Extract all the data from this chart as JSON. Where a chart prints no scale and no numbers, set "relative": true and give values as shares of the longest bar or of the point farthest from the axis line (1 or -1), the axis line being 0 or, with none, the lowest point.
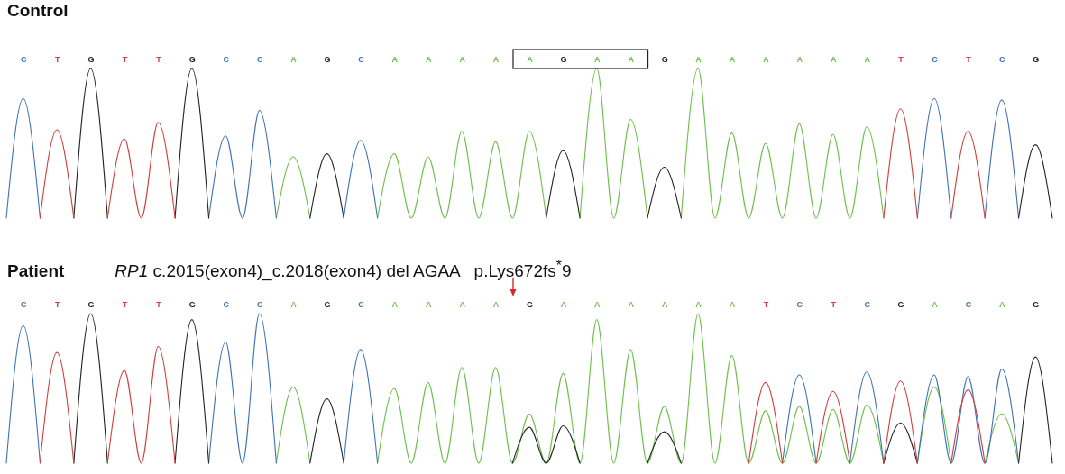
{
  "chart_data": [
    {
      "type": "line",
      "title": "Control",
      "relative": true,
      "tick_labels": "x",
      "legend": false,
      "grid": false,
      "categories": [
        null,
        "C",
        null,
        "T",
        null,
        "G",
        null,
        "T",
        null,
        "T",
        null,
        "G",
        null,
        "C",
        null,
        "C",
        null,
        "A",
        null,
        "G",
        null,
        "C",
        null,
        "A",
        null,
        "A",
        null,
        "A",
        null,
        "A",
        null,
        "A",
        null,
        "G",
        null,
        "A",
        null,
        "A",
        null,
        "G",
        null,
        "A",
        null,
        "A",
        null,
        "A",
        null,
        "A",
        null,
        "A",
        null,
        "A",
        null,
        "T",
        null,
        "C",
        null,
        "T",
        null,
        "C",
        null,
        "G",
        null
      ],
      "series": [
        {
          "color": "#6cc04a",
          "values": [
            null,
            null,
            null,
            null,
            null,
            null,
            null,
            null,
            null,
            null,
            null,
            null,
            null,
            null,
            null,
            null,
            0,
            0.41,
            0,
            null,
            null,
            null,
            0,
            0.43,
            0,
            0.41,
            0,
            0.58,
            0,
            0.51,
            0,
            0.58,
            0,
            null,
            0,
            1,
            0,
            0.66,
            0,
            null,
            0,
            1,
            0,
            0.57,
            0,
            0.5,
            0,
            0.63,
            0,
            0.56,
            0,
            0.61,
            0,
            null,
            null,
            null,
            null,
            null,
            null,
            null,
            null,
            null,
            null
          ]
        },
        {
          "color": "#3d72b8",
          "values": [
            0,
            0.8,
            0,
            null,
            null,
            null,
            null,
            null,
            null,
            null,
            null,
            null,
            0,
            0.55,
            0,
            0.72,
            0,
            null,
            null,
            null,
            0,
            0.52,
            0,
            null,
            null,
            null,
            null,
            null,
            null,
            null,
            null,
            null,
            null,
            null,
            null,
            null,
            null,
            null,
            null,
            null,
            null,
            null,
            null,
            null,
            null,
            null,
            null,
            null,
            null,
            null,
            null,
            null,
            null,
            null,
            0,
            0.8,
            0,
            null,
            0,
            0.79,
            0,
            null,
            null
          ]
        },
        {
          "color": "#222222",
          "values": [
            null,
            null,
            null,
            null,
            0,
            1,
            0,
            null,
            null,
            null,
            0,
            1,
            0,
            null,
            null,
            null,
            null,
            null,
            0,
            0.43,
            0,
            null,
            null,
            null,
            null,
            null,
            null,
            null,
            null,
            null,
            null,
            null,
            0,
            0.45,
            0,
            null,
            null,
            null,
            0,
            0.34,
            0,
            null,
            null,
            null,
            null,
            null,
            null,
            null,
            null,
            null,
            null,
            null,
            null,
            null,
            null,
            null,
            null,
            null,
            null,
            null,
            0,
            0.49,
            0
          ]
        },
        {
          "color": "#d23c3c",
          "values": [
            null,
            null,
            0,
            0.59,
            0,
            null,
            0,
            0.53,
            0,
            0.64,
            0,
            null,
            null,
            null,
            null,
            null,
            null,
            null,
            null,
            null,
            null,
            null,
            null,
            null,
            null,
            null,
            null,
            null,
            null,
            null,
            null,
            null,
            null,
            null,
            null,
            null,
            null,
            null,
            null,
            null,
            null,
            null,
            null,
            null,
            null,
            null,
            null,
            null,
            null,
            null,
            null,
            null,
            0,
            0.73,
            0,
            null,
            0,
            0.58,
            0,
            null,
            null,
            null,
            null
          ]
        }
      ]
    },
    {
      "type": "line",
      "title": "Patient",
      "subtitle": "RP1 c.2015(exon4)_c.2018(exon4) del AGAA   p.Lys672fs$^{*}$9",
      "relative": true,
      "tick_labels": "x",
      "legend": false,
      "grid": false,
      "categories": [
        null,
        "C",
        null,
        "T",
        null,
        "G",
        null,
        "T",
        null,
        "T",
        null,
        "G",
        null,
        "C",
        null,
        "C",
        null,
        "A",
        null,
        "G",
        null,
        "C",
        null,
        "A",
        null,
        "A",
        null,
        "A",
        null,
        "A",
        null,
        "G",
        null,
        "A",
        null,
        "A",
        null,
        "A",
        null,
        "A",
        null,
        "A",
        null,
        "A",
        null,
        "T",
        null,
        "C",
        null,
        "T",
        null,
        "C",
        null,
        "G",
        null,
        "A",
        null,
        "C",
        null,
        "A",
        null,
        "G",
        null
      ],
      "series": [
        {
          "color": "#6cc04a",
          "values": [
            null,
            null,
            null,
            null,
            null,
            null,
            null,
            null,
            null,
            null,
            null,
            null,
            null,
            null,
            null,
            null,
            0,
            0.51,
            0,
            null,
            null,
            null,
            0,
            0.5,
            0,
            0.54,
            0,
            0.64,
            0,
            0.64,
            0,
            0.33,
            0,
            0.6,
            0,
            0.96,
            0,
            0.76,
            0,
            0.38,
            0,
            1,
            0,
            0.72,
            0,
            0.35,
            0,
            0.38,
            0,
            0.36,
            0,
            0.39,
            0,
            null,
            0,
            0.51,
            0,
            null,
            0,
            0.33,
            0,
            null,
            null
          ]
        },
        {
          "color": "#3d72b8",
          "values": [
            0,
            0.92,
            0,
            null,
            null,
            null,
            null,
            null,
            null,
            null,
            null,
            null,
            0,
            0.81,
            0,
            1,
            0,
            null,
            null,
            null,
            0,
            0.76,
            0,
            null,
            null,
            null,
            null,
            null,
            null,
            null,
            null,
            null,
            null,
            null,
            null,
            null,
            null,
            null,
            null,
            null,
            null,
            null,
            null,
            null,
            null,
            null,
            0,
            0.59,
            0,
            null,
            0,
            0.61,
            0,
            null,
            0,
            0.59,
            0,
            0.58,
            0,
            0.63,
            0,
            null,
            null
          ]
        },
        {
          "color": "#222222",
          "values": [
            null,
            null,
            null,
            null,
            0,
            1,
            0,
            null,
            null,
            null,
            0,
            0.96,
            0,
            null,
            null,
            null,
            null,
            null,
            0,
            0.43,
            0,
            null,
            null,
            null,
            null,
            null,
            null,
            null,
            null,
            null,
            0,
            0.24,
            0,
            0.25,
            0,
            null,
            null,
            null,
            0,
            0.21,
            0,
            null,
            null,
            null,
            null,
            null,
            null,
            null,
            null,
            null,
            null,
            null,
            0,
            0.27,
            0,
            null,
            null,
            null,
            null,
            null,
            0,
            0.71,
            0
          ]
        },
        {
          "color": "#d23c3c",
          "values": [
            null,
            null,
            0,
            0.74,
            0,
            null,
            0,
            0.62,
            0,
            0.78,
            0,
            null,
            null,
            null,
            null,
            null,
            null,
            null,
            null,
            null,
            null,
            null,
            null,
            null,
            null,
            null,
            null,
            null,
            null,
            null,
            null,
            null,
            null,
            null,
            null,
            null,
            null,
            null,
            null,
            null,
            null,
            null,
            null,
            null,
            0,
            0.54,
            0,
            null,
            0,
            0.48,
            0,
            null,
            0,
            0.55,
            0,
            null,
            0,
            0.49,
            0,
            null,
            null,
            null,
            null
          ]
        }
      ]
    }
  ]
}
